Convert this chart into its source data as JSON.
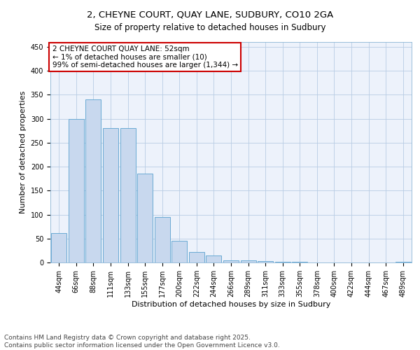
{
  "title_line1": "2, CHEYNE COURT, QUAY LANE, SUDBURY, CO10 2GA",
  "title_line2": "Size of property relative to detached houses in Sudbury",
  "xlabel": "Distribution of detached houses by size in Sudbury",
  "ylabel": "Number of detached properties",
  "bar_color": "#c8d8ee",
  "bar_edge_color": "#6aaad4",
  "annotation_box_color": "#cc0000",
  "annotation_text": "2 CHEYNE COURT QUAY LANE: 52sqm\n← 1% of detached houses are smaller (10)\n99% of semi-detached houses are larger (1,344) →",
  "categories": [
    "44sqm",
    "66sqm",
    "88sqm",
    "111sqm",
    "133sqm",
    "155sqm",
    "177sqm",
    "200sqm",
    "222sqm",
    "244sqm",
    "266sqm",
    "289sqm",
    "311sqm",
    "333sqm",
    "355sqm",
    "378sqm",
    "400sqm",
    "422sqm",
    "444sqm",
    "467sqm",
    "489sqm"
  ],
  "values": [
    62,
    300,
    340,
    280,
    280,
    185,
    95,
    45,
    22,
    15,
    5,
    5,
    3,
    1,
    1,
    0,
    0,
    0,
    0,
    0,
    1
  ],
  "ylim": [
    0,
    460
  ],
  "yticks": [
    0,
    50,
    100,
    150,
    200,
    250,
    300,
    350,
    400,
    450
  ],
  "grid_color": "#b8cce4",
  "background_color": "#edf2fb",
  "footer_line1": "Contains HM Land Registry data © Crown copyright and database right 2025.",
  "footer_line2": "Contains public sector information licensed under the Open Government Licence v3.0.",
  "title_fontsize": 9.5,
  "subtitle_fontsize": 8.5,
  "axis_label_fontsize": 8,
  "tick_fontsize": 7,
  "annotation_fontsize": 7.5,
  "footer_fontsize": 6.5
}
